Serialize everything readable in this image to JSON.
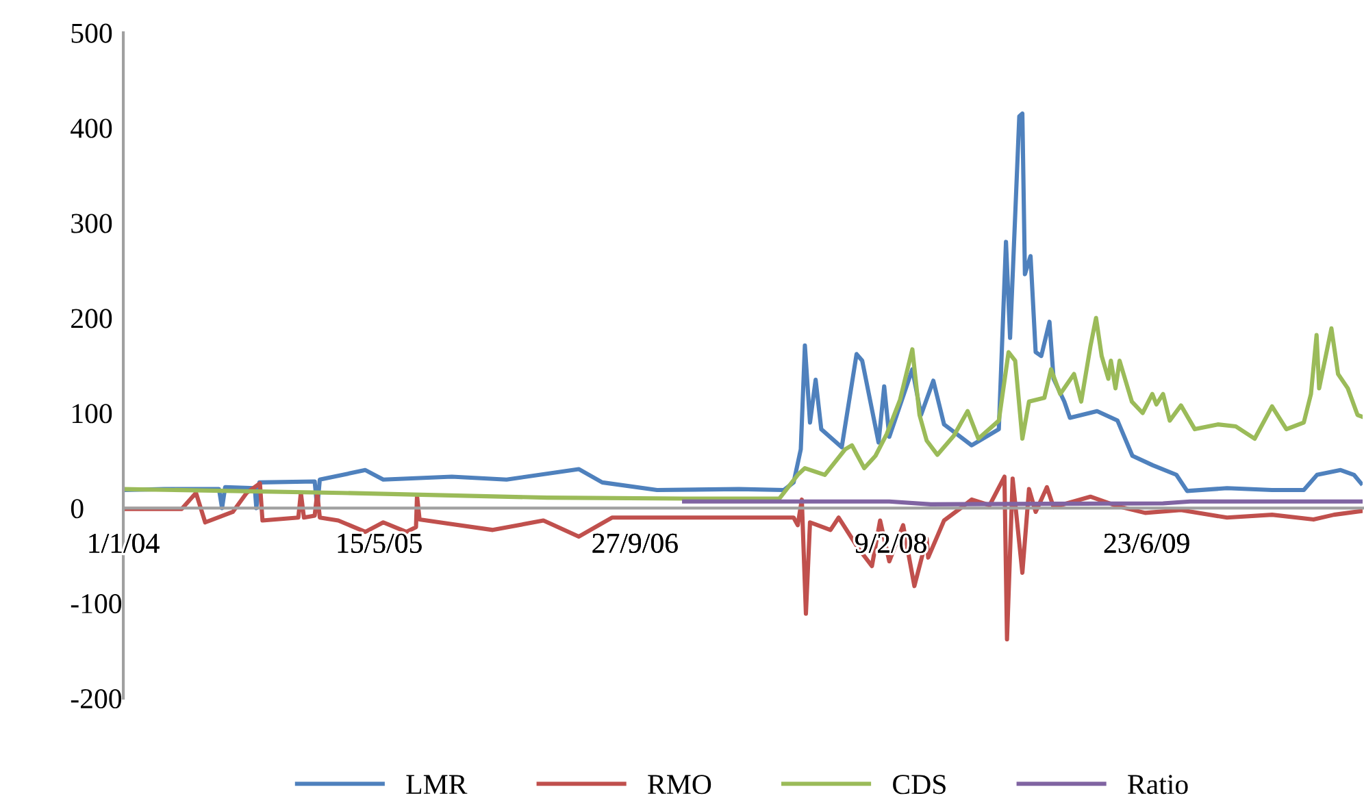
{
  "chart_data": {
    "type": "line",
    "series": [
      {
        "name": "LMR",
        "color": "#4f81bd",
        "x": [
          "2004-01-01",
          "2004-03-21",
          "2004-07-06",
          "2004-07-12",
          "2004-07-18",
          "2004-09-14",
          "2004-09-17",
          "2004-09-23",
          "2005-01-09",
          "2005-01-14",
          "2005-01-19",
          "2005-04-18",
          "2005-05-23",
          "2005-10-04",
          "2006-01-19",
          "2006-06-09",
          "2006-07-25",
          "2006-11-09",
          "2007-04-18",
          "2007-07-15",
          "2007-08-03",
          "2007-08-17",
          "2007-08-25",
          "2007-09-04",
          "2007-09-15",
          "2007-09-26",
          "2007-11-05",
          "2007-12-04",
          "2007-12-15",
          "2008-01-16",
          "2008-01-27",
          "2008-02-06",
          "2008-03-22",
          "2008-04-08",
          "2008-05-02",
          "2008-05-23",
          "2008-07-16",
          "2008-09-07",
          "2008-09-21",
          "2008-09-29",
          "2008-10-09",
          "2008-10-17",
          "2008-10-23",
          "2008-10-28",
          "2008-11-08",
          "2008-11-18",
          "2008-11-29",
          "2008-12-15",
          "2008-12-23",
          "2009-01-13",
          "2009-01-24",
          "2009-03-18",
          "2009-04-27",
          "2009-05-26",
          "2009-07-05",
          "2009-08-20",
          "2009-09-10",
          "2009-11-27",
          "2010-02-23",
          "2010-04-26",
          "2010-05-22",
          "2010-07-07",
          "2010-08-02",
          "2010-08-16"
        ],
        "values": [
          19,
          20,
          20,
          0,
          22,
          21,
          0,
          27,
          28,
          0,
          30,
          40,
          30,
          33,
          30,
          41,
          27,
          19,
          20,
          19,
          27,
          62,
          171,
          90,
          135,
          83,
          64,
          162,
          155,
          69,
          128,
          75,
          146,
          98,
          134,
          88,
          66,
          83,
          280,
          179,
          308,
          412,
          415,
          246,
          265,
          164,
          160,
          196,
          136,
          112,
          95,
          102,
          92,
          55,
          45,
          35,
          18,
          21,
          19,
          19,
          35,
          40,
          35,
          26
        ]
      },
      {
        "name": "RMO",
        "color": "#c0504d",
        "x": [
          "2004-01-01",
          "2004-04-24",
          "2004-05-22",
          "2004-06-09",
          "2004-08-02",
          "2004-08-29",
          "2004-09-24",
          "2004-09-29",
          "2004-12-08",
          "2004-12-13",
          "2004-12-19",
          "2005-01-09",
          "2005-01-14",
          "2005-01-19",
          "2005-02-24",
          "2005-04-18",
          "2005-05-23",
          "2005-07-07",
          "2005-07-26",
          "2005-07-28",
          "2005-08-02",
          "2005-12-23",
          "2006-04-01",
          "2006-06-09",
          "2006-08-13",
          "2007-04-18",
          "2007-08-03",
          "2007-08-11",
          "2007-08-19",
          "2007-08-27",
          "2007-09-04",
          "2007-10-14",
          "2007-10-30",
          "2007-12-07",
          "2008-01-03",
          "2008-01-19",
          "2008-02-06",
          "2008-03-04",
          "2008-03-26",
          "2008-04-19",
          "2008-04-22",
          "2008-05-23",
          "2008-06-27",
          "2008-07-16",
          "2008-08-20",
          "2008-09-18",
          "2008-09-23",
          "2008-10-04",
          "2008-10-23",
          "2008-11-05",
          "2008-11-18",
          "2008-12-10",
          "2008-12-23",
          "2009-03-05",
          "2009-04-27",
          "2009-06-20",
          "2009-08-29",
          "2009-11-27",
          "2010-02-23",
          "2010-05-15",
          "2010-06-24",
          "2010-08-19"
        ],
        "values": [
          -1,
          -1,
          16,
          -15,
          -4,
          16,
          26,
          -13,
          -10,
          16,
          -10,
          -8,
          16,
          -10,
          -13,
          -25,
          -15,
          -25,
          -20,
          13,
          -12,
          -23,
          -13,
          -30,
          -10,
          -10,
          -10,
          -18,
          9,
          -111,
          -15,
          -23,
          -10,
          -42,
          -61,
          -13,
          -56,
          -18,
          -82,
          -32,
          -52,
          -13,
          1,
          9,
          3,
          33,
          -138,
          31,
          -68,
          20,
          -4,
          22,
          1,
          12,
          2,
          -5,
          -2,
          -10,
          -7,
          -12,
          -7,
          -3
        ]
      },
      {
        "name": "CDS",
        "color": "#9bbb59",
        "x": [
          "2004-01-01",
          "2005-03-03",
          "2006-04-08",
          "2007-01-01",
          "2007-07-06",
          "2007-08-11",
          "2007-08-25",
          "2007-10-03",
          "2007-11-12",
          "2007-11-25",
          "2007-12-19",
          "2008-01-10",
          "2008-02-01",
          "2008-02-27",
          "2008-03-22",
          "2008-04-05",
          "2008-04-19",
          "2008-05-10",
          "2008-06-11",
          "2008-07-08",
          "2008-07-29",
          "2008-09-07",
          "2008-09-26",
          "2008-10-09",
          "2008-10-23",
          "2008-11-05",
          "2008-12-05",
          "2008-12-18",
          "2009-01-05",
          "2009-02-01",
          "2009-02-15",
          "2009-03-05",
          "2009-03-16",
          "2009-03-27",
          "2009-04-09",
          "2009-04-14",
          "2009-04-23",
          "2009-05-01",
          "2009-05-25",
          "2009-06-15",
          "2009-07-04",
          "2009-07-12",
          "2009-07-25",
          "2009-08-07",
          "2009-08-29",
          "2009-09-25",
          "2009-11-09",
          "2009-12-14",
          "2010-01-20",
          "2010-02-23",
          "2010-03-23",
          "2010-04-26",
          "2010-05-10",
          "2010-05-21",
          "2010-05-26",
          "2010-06-19",
          "2010-07-02",
          "2010-07-21",
          "2010-08-09",
          "2010-08-19"
        ],
        "values": [
          20,
          16,
          11,
          10,
          10,
          35,
          42,
          35,
          62,
          66,
          42,
          55,
          78,
          114,
          167,
          98,
          71,
          56,
          76,
          102,
          73,
          92,
          164,
          155,
          73,
          112,
          116,
          146,
          120,
          141,
          112,
          170,
          200,
          160,
          136,
          155,
          126,
          155,
          112,
          100,
          120,
          109,
          120,
          92,
          108,
          83,
          88,
          86,
          73,
          107,
          83,
          90,
          120,
          182,
          126,
          189,
          141,
          126,
          98,
          96
        ]
      },
      {
        "name": "Ratio",
        "color": "#8064a2",
        "x": [
          "2007-01-01",
          "2008-02-06",
          "2008-04-27",
          "2009-07-25",
          "2009-09-16",
          "2010-08-19"
        ],
        "values": [
          7,
          7,
          4,
          5,
          7,
          7
        ]
      }
    ],
    "xlim": [
      "2004-01-01",
      "2010-08-19"
    ],
    "xticks": [
      {
        "value": "2004-01-01",
        "label": "1/1/04"
      },
      {
        "value": "2005-05-15",
        "label": "15/5/05"
      },
      {
        "value": "2006-09-27",
        "label": "27/9/06"
      },
      {
        "value": "2008-02-09",
        "label": "9/2/08"
      },
      {
        "value": "2009-06-23",
        "label": "23/6/09"
      }
    ],
    "ylim": [
      -200,
      500
    ],
    "yticks": [
      -200,
      -100,
      0,
      100,
      200,
      300,
      400,
      500
    ],
    "legend": "bottom",
    "grid": false,
    "line_style": "solid"
  }
}
